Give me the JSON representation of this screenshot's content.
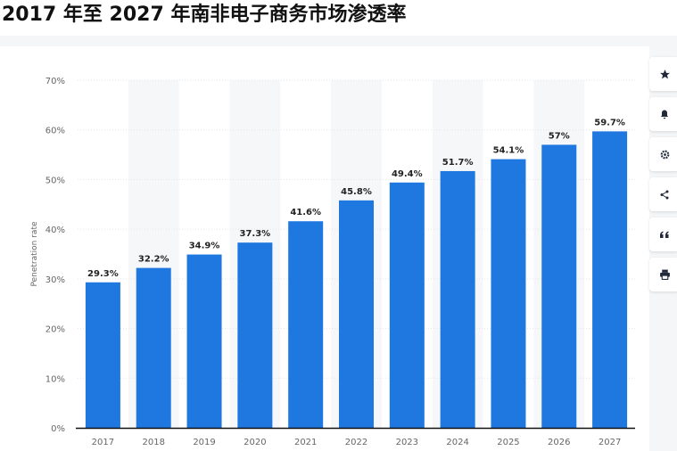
{
  "page": {
    "title": "2017 年至 2027 年南非电子商务市场渗透率"
  },
  "toolbar": {
    "items": [
      {
        "icon": "star-icon"
      },
      {
        "icon": "bell-icon"
      },
      {
        "icon": "gear-icon"
      },
      {
        "icon": "share-icon"
      },
      {
        "icon": "quote-icon"
      },
      {
        "icon": "print-icon"
      }
    ]
  },
  "chart_data": {
    "type": "bar",
    "title": "",
    "xlabel": "",
    "ylabel": "Penetration rate",
    "categories": [
      "2017",
      "2018",
      "2019",
      "2020",
      "2021",
      "2022",
      "2023",
      "2024",
      "2025",
      "2026",
      "2027"
    ],
    "values": [
      29.3,
      32.2,
      34.9,
      37.3,
      41.6,
      45.8,
      49.4,
      51.7,
      54.1,
      57,
      59.7
    ],
    "value_labels": [
      "29.3%",
      "32.2%",
      "34.9%",
      "37.3%",
      "41.6%",
      "45.8%",
      "49.4%",
      "51.7%",
      "54.1%",
      "57%",
      "59.7%"
    ],
    "yticks": [
      "0%",
      "10%",
      "20%",
      "30%",
      "40%",
      "50%",
      "60%",
      "70%"
    ],
    "ylim": [
      0,
      70
    ],
    "grid": true,
    "colors": {
      "bar": "#1f77e0",
      "band": "#f6f7f8",
      "grid": "#e3e6ea",
      "axis": "#111111",
      "label": "#222222",
      "tick": "#666666"
    }
  }
}
